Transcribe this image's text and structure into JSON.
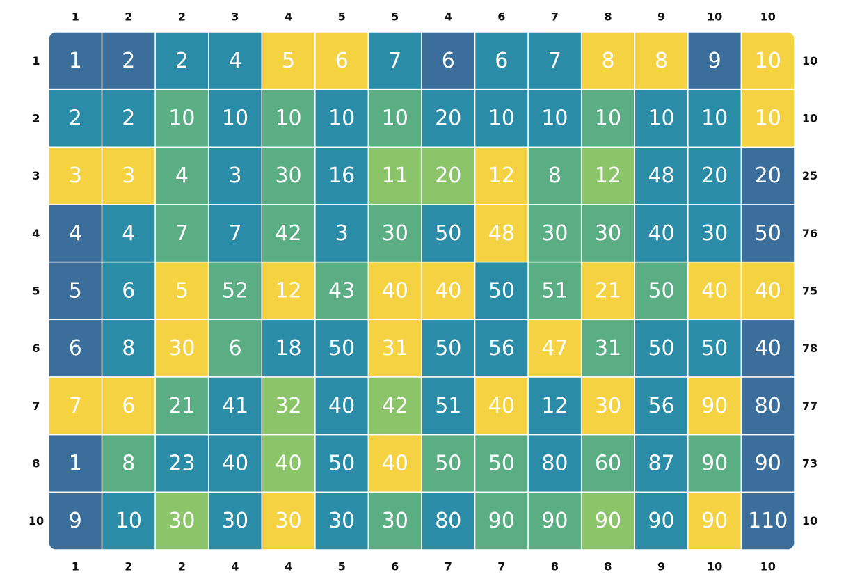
{
  "grid": {
    "top_labels": [
      1,
      2,
      2,
      3,
      4,
      5,
      5,
      4,
      6,
      7,
      8,
      9,
      10,
      10
    ],
    "bottom_labels": [
      1,
      2,
      2,
      4,
      4,
      5,
      6,
      7,
      7,
      8,
      8,
      9,
      10,
      10
    ],
    "left_labels": [
      1,
      2,
      3,
      4,
      5,
      6,
      7,
      8,
      10
    ],
    "right_labels": [
      10,
      10,
      25,
      76,
      75,
      78,
      77,
      73,
      10
    ],
    "rows": [
      {
        "values": [
          1,
          2,
          2,
          4,
          5,
          6,
          7,
          6,
          6,
          7,
          8,
          8,
          9,
          10
        ],
        "colors": [
          "#3b6e9b",
          "#3b6e9b",
          "#2a8ca6",
          "#2a8ca6",
          "#f4d241",
          "#f4d241",
          "#2a8ca6",
          "#3b6e9b",
          "#2a8ca6",
          "#2a8ca6",
          "#f4d241",
          "#f4d241",
          "#3b6e9b",
          "#f4d241"
        ]
      },
      {
        "values": [
          2,
          2,
          10,
          10,
          10,
          10,
          10,
          20,
          10,
          10,
          10,
          10,
          10,
          10
        ],
        "colors": [
          "#2a8ca6",
          "#2a8ca6",
          "#5bae84",
          "#2a8ca6",
          "#5bae84",
          "#2a8ca6",
          "#5bae84",
          "#2a8ca6",
          "#2a8ca6",
          "#2a8ca6",
          "#5bae84",
          "#2a8ca6",
          "#2a8ca6",
          "#f4d241"
        ]
      },
      {
        "values": [
          3,
          3,
          4,
          3,
          30,
          16,
          11,
          20,
          12,
          8,
          12,
          48,
          20,
          20
        ],
        "colors": [
          "#f4d241",
          "#f4d241",
          "#5bae84",
          "#2a8ca6",
          "#5bae84",
          "#2a8ca6",
          "#8cc46a",
          "#8cc46a",
          "#f4d241",
          "#5bae84",
          "#8cc46a",
          "#2a8ca6",
          "#2a8ca6",
          "#3b6e9b"
        ]
      },
      {
        "values": [
          4,
          4,
          7,
          7,
          42,
          3,
          30,
          50,
          48,
          30,
          30,
          40,
          30,
          50
        ],
        "colors": [
          "#3b6e9b",
          "#2a8ca6",
          "#5bae84",
          "#2a8ca6",
          "#5bae84",
          "#2a8ca6",
          "#5bae84",
          "#2a8ca6",
          "#f4d241",
          "#5bae84",
          "#5bae84",
          "#2a8ca6",
          "#2a8ca6",
          "#3b6e9b"
        ]
      },
      {
        "values": [
          5,
          6,
          5,
          52,
          12,
          43,
          40,
          40,
          50,
          51,
          21,
          50,
          40,
          40
        ],
        "colors": [
          "#3b6e9b",
          "#2a8ca6",
          "#f4d241",
          "#5bae84",
          "#f4d241",
          "#5bae84",
          "#f4d241",
          "#f4d241",
          "#2a8ca6",
          "#5bae84",
          "#f4d241",
          "#5bae84",
          "#f4d241",
          "#f4d241"
        ]
      },
      {
        "values": [
          6,
          8,
          30,
          6,
          18,
          50,
          31,
          50,
          56,
          47,
          31,
          50,
          50,
          40
        ],
        "colors": [
          "#3b6e9b",
          "#2a8ca6",
          "#f4d241",
          "#5bae84",
          "#2a8ca6",
          "#2a8ca6",
          "#f4d241",
          "#2a8ca6",
          "#2a8ca6",
          "#f4d241",
          "#5bae84",
          "#2a8ca6",
          "#2a8ca6",
          "#3b6e9b"
        ]
      },
      {
        "values": [
          7,
          6,
          21,
          41,
          32,
          40,
          42,
          51,
          40,
          12,
          30,
          56,
          90,
          80
        ],
        "colors": [
          "#f4d241",
          "#f4d241",
          "#5bae84",
          "#2a8ca6",
          "#8cc46a",
          "#2a8ca6",
          "#8cc46a",
          "#2a8ca6",
          "#f4d241",
          "#2a8ca6",
          "#f4d241",
          "#2a8ca6",
          "#f4d241",
          "#3b6e9b"
        ]
      },
      {
        "values": [
          1,
          8,
          23,
          40,
          40,
          50,
          40,
          50,
          50,
          80,
          60,
          87,
          90,
          90
        ],
        "colors": [
          "#3b6e9b",
          "#5bae84",
          "#2a8ca6",
          "#2a8ca6",
          "#8cc46a",
          "#2a8ca6",
          "#f4d241",
          "#5bae84",
          "#5bae84",
          "#2a8ca6",
          "#5bae84",
          "#2a8ca6",
          "#5bae84",
          "#3b6e9b"
        ]
      },
      {
        "values": [
          9,
          10,
          30,
          30,
          30,
          30,
          30,
          80,
          90,
          90,
          90,
          90,
          90,
          110
        ],
        "colors": [
          "#3b6e9b",
          "#2a8ca6",
          "#8cc46a",
          "#2a8ca6",
          "#f4d241",
          "#2a8ca6",
          "#5bae84",
          "#2a8ca6",
          "#5bae84",
          "#5bae84",
          "#8cc46a",
          "#2a8ca6",
          "#f4d241",
          "#3b6e9b"
        ]
      }
    ]
  }
}
